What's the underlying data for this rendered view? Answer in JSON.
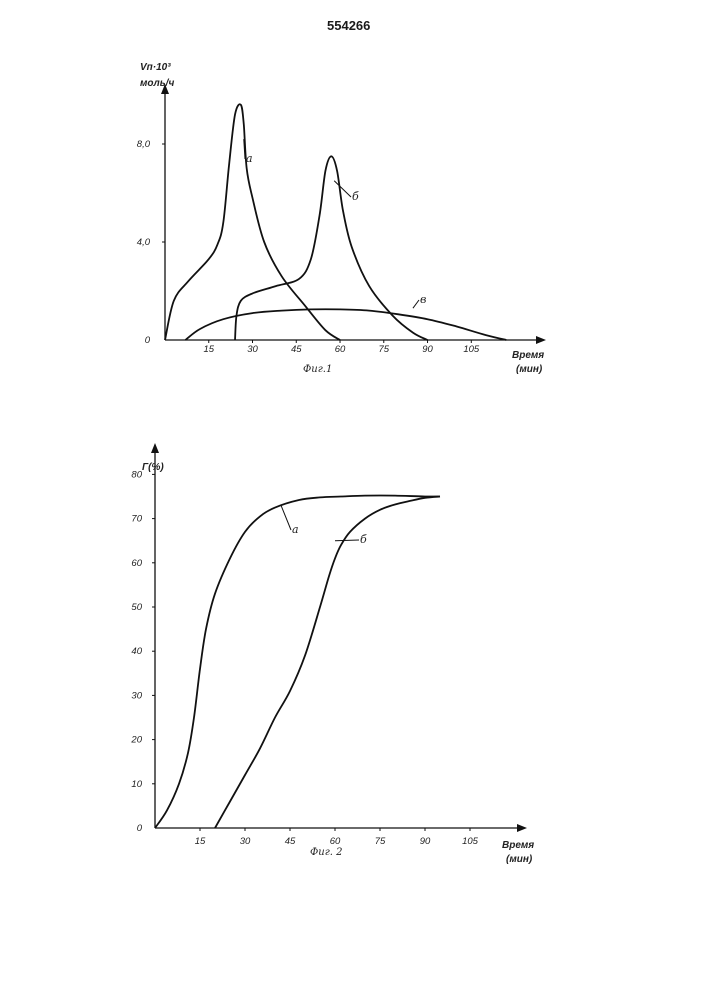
{
  "page": {
    "number": "554266"
  },
  "chart_data": [
    {
      "type": "line",
      "caption": "Фиг.1",
      "ylabel": "Vп·10³",
      "ylabel_units": "моль/ч",
      "xlabel": "Время",
      "xlabel_units": "(мин)",
      "xlim": [
        0,
        120
      ],
      "ylim": [
        0,
        10
      ],
      "x_ticks": [
        "15",
        "30",
        "45",
        "60",
        "75",
        "90",
        "105"
      ],
      "y_ticks": [
        "0",
        "4,0",
        "8,0"
      ],
      "series": [
        {
          "name": "а",
          "x": [
            0,
            3,
            8,
            15,
            18,
            20,
            22,
            24,
            26,
            27,
            28,
            30,
            34,
            40,
            48,
            55,
            60
          ],
          "y": [
            0,
            1.6,
            2.4,
            3.3,
            3.9,
            4.8,
            7.2,
            9.2,
            9.6,
            8.8,
            7.0,
            5.8,
            4.0,
            2.6,
            1.4,
            0.4,
            0
          ]
        },
        {
          "name": "б",
          "x": [
            24,
            24.5,
            26,
            30,
            38,
            46,
            50,
            53,
            55,
            57,
            59,
            61,
            64,
            70,
            78,
            85,
            90
          ],
          "y": [
            0,
            1.0,
            1.6,
            1.9,
            2.2,
            2.5,
            3.3,
            5.1,
            6.9,
            7.5,
            6.9,
            5.3,
            3.8,
            2.2,
            1.0,
            0.3,
            0
          ]
        },
        {
          "name": "в",
          "x": [
            7,
            12,
            20,
            30,
            40,
            50,
            60,
            70,
            80,
            90,
            100,
            110,
            117
          ],
          "y": [
            0,
            0.45,
            0.85,
            1.1,
            1.2,
            1.25,
            1.25,
            1.2,
            1.05,
            0.85,
            0.55,
            0.2,
            0
          ]
        }
      ]
    },
    {
      "type": "line",
      "caption": "Фиг. 2",
      "ylabel": "Г(%)",
      "xlabel": "Время",
      "xlabel_units": "(мин)",
      "xlim": [
        0,
        120
      ],
      "ylim": [
        0,
        85
      ],
      "x_ticks": [
        "15",
        "30",
        "45",
        "60",
        "75",
        "90",
        "105"
      ],
      "y_ticks": [
        "0",
        "10",
        "20",
        "30",
        "40",
        "50",
        "60",
        "70",
        "80"
      ],
      "series": [
        {
          "name": "а",
          "x": [
            0,
            4,
            8,
            11,
            13,
            15,
            17,
            20,
            25,
            30,
            35,
            40,
            48,
            55,
            62,
            70,
            80,
            90,
            95
          ],
          "y": [
            0,
            4,
            10,
            17,
            25,
            36,
            45,
            53,
            61,
            67,
            70.5,
            72.5,
            74.2,
            74.8,
            75,
            75.2,
            75.2,
            75,
            75
          ]
        },
        {
          "name": "б",
          "x": [
            20,
            25,
            30,
            35,
            40,
            45,
            50,
            55,
            58,
            60,
            62,
            65,
            70,
            75,
            80,
            85,
            90,
            95
          ],
          "y": [
            0,
            6,
            12,
            18,
            25,
            31,
            39,
            50,
            57,
            61,
            64,
            67,
            70,
            72,
            73.2,
            74,
            74.7,
            75
          ]
        }
      ]
    }
  ]
}
